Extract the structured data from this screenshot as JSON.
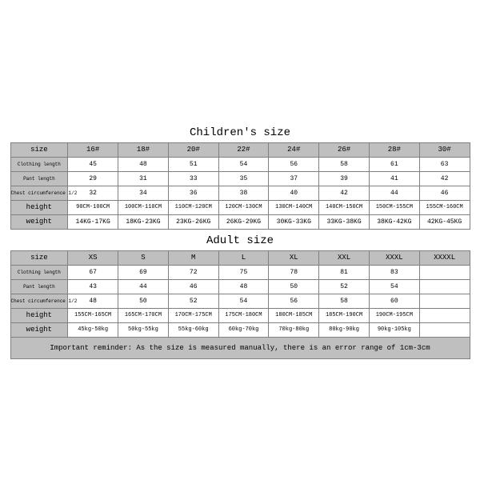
{
  "children": {
    "title": "Children's size",
    "row_labels": [
      "size",
      "Clothing length",
      "Pant length",
      "Chest circumference 1/2",
      "height",
      "weight"
    ],
    "sizes": [
      "16#",
      "18#",
      "20#",
      "22#",
      "24#",
      "26#",
      "28#",
      "30#"
    ],
    "clothing": [
      "45",
      "48",
      "51",
      "54",
      "56",
      "58",
      "61",
      "63"
    ],
    "pant": [
      "29",
      "31",
      "33",
      "35",
      "37",
      "39",
      "41",
      "42"
    ],
    "chest": [
      "32",
      "34",
      "36",
      "38",
      "40",
      "42",
      "44",
      "46"
    ],
    "height": [
      "90CM-100CM",
      "100CM-110CM",
      "110CM-120CM",
      "120CM-130CM",
      "130CM-140CM",
      "140CM-150CM",
      "150CM-155CM",
      "155CM-160CM"
    ],
    "weight": [
      "14KG-17KG",
      "18KG-23KG",
      "23KG-26KG",
      "26KG-29KG",
      "30KG-33KG",
      "33KG-38KG",
      "38KG-42KG",
      "42KG-45KG"
    ]
  },
  "adult": {
    "title": "Adult size",
    "row_labels": [
      "size",
      "Clothing length",
      "Pant length",
      "Chest circumference 1/2",
      "height",
      "weight"
    ],
    "sizes": [
      "XS",
      "S",
      "M",
      "L",
      "XL",
      "XXL",
      "XXXL",
      "XXXXL"
    ],
    "clothing": [
      "67",
      "69",
      "72",
      "75",
      "78",
      "81",
      "83",
      ""
    ],
    "pant": [
      "43",
      "44",
      "46",
      "48",
      "50",
      "52",
      "54",
      ""
    ],
    "chest": [
      "48",
      "50",
      "52",
      "54",
      "56",
      "58",
      "60",
      ""
    ],
    "height": [
      "155CM-165CM",
      "165CM-170CM",
      "170CM-175CM",
      "175CM-180CM",
      "180CM-185CM",
      "185CM-190CM",
      "190CM-195CM",
      ""
    ],
    "weight": [
      "45kg-50kg",
      "50kg-55kg",
      "55kg-60kg",
      "60kg-70kg",
      "70kg-80kg",
      "80kg-90kg",
      "90kg-105kg",
      ""
    ]
  },
  "note": "Important reminder: As the size is measured manually, there is an error range of 1cm-3cm",
  "style": {
    "header_bg": "#bfbfbf",
    "cell_bg": "#ffffff",
    "border_color": "#808080",
    "font_family": "Courier New",
    "title_fontsize_pt": 11,
    "header_fontsize_pt": 7,
    "small_label_fontsize_pt": 5,
    "value_fontsize_pt": 6,
    "note_fontsize_pt": 7
  }
}
